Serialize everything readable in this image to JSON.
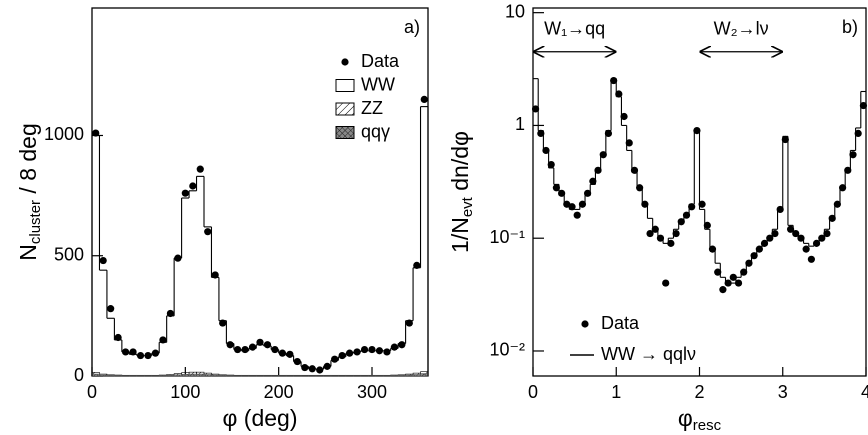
{
  "chart_data": [
    {
      "type": "histogram",
      "panel_label": "a)",
      "xlabel": {
        "main": "φ (deg)"
      },
      "ylabel": {
        "main": "N",
        "sub": "cluster",
        "rest": " / 8 deg"
      },
      "bins": [
        0,
        8,
        16,
        24,
        32,
        40,
        48,
        56,
        64,
        72,
        80,
        88,
        96,
        104,
        112,
        120,
        128,
        136,
        144,
        152,
        160,
        168,
        176,
        184,
        192,
        200,
        208,
        216,
        224,
        232,
        240,
        248,
        256,
        264,
        272,
        280,
        288,
        296,
        304,
        312,
        320,
        328,
        336,
        344,
        352,
        360
      ],
      "series": [
        {
          "name": "ZZ",
          "style": "hatch",
          "color": "#000000",
          "values": [
            15,
            8,
            5,
            4,
            3,
            3,
            3,
            3,
            3,
            4,
            6,
            10,
            14,
            16,
            16,
            12,
            8,
            5,
            4,
            3,
            3,
            3,
            3,
            3,
            3,
            3,
            3,
            3,
            3,
            3,
            3,
            3,
            3,
            3,
            3,
            3,
            3,
            3,
            3,
            3,
            4,
            5,
            8,
            12,
            18
          ]
        },
        {
          "name": "qqγ",
          "style": "crosshatch",
          "color": "#555555",
          "values": [
            8,
            4,
            3,
            2,
            2,
            2,
            2,
            2,
            2,
            2,
            3,
            5,
            7,
            8,
            8,
            6,
            4,
            3,
            2,
            2,
            2,
            2,
            2,
            2,
            2,
            2,
            2,
            2,
            2,
            2,
            2,
            2,
            2,
            2,
            2,
            2,
            2,
            2,
            2,
            2,
            2,
            3,
            4,
            6,
            10
          ]
        },
        {
          "name": "WW",
          "style": "step",
          "color": "#000000",
          "values": [
            1000,
            440,
            240,
            150,
            100,
            90,
            85,
            85,
            95,
            140,
            250,
            490,
            740,
            770,
            830,
            620,
            410,
            230,
            135,
            110,
            105,
            115,
            130,
            125,
            110,
            95,
            85,
            60,
            40,
            30,
            28,
            40,
            65,
            80,
            95,
            100,
            105,
            105,
            105,
            105,
            115,
            135,
            230,
            450,
            1120
          ]
        },
        {
          "name": "Data",
          "style": "points",
          "color": "#000000",
          "values": [
            1010,
            480,
            280,
            160,
            100,
            100,
            85,
            85,
            95,
            150,
            260,
            490,
            760,
            790,
            860,
            600,
            420,
            220,
            130,
            110,
            110,
            120,
            140,
            130,
            110,
            95,
            90,
            60,
            35,
            30,
            25,
            40,
            70,
            85,
            95,
            100,
            110,
            110,
            105,
            100,
            120,
            130,
            220,
            460,
            1150
          ]
        }
      ],
      "xlim": [
        0,
        360
      ],
      "xticks": [
        0,
        100,
        200,
        300
      ],
      "ylim": [
        0,
        1530
      ],
      "yticks": [
        0,
        500,
        1000
      ]
    },
    {
      "type": "line",
      "panel_label": "b)",
      "log_y": true,
      "xlabel": {
        "main": "φ",
        "sub": "resc"
      },
      "ylabel": {
        "main": "1/N",
        "sub": "evt",
        "rest": " dn/dφ"
      },
      "x": [
        0.031,
        0.094,
        0.156,
        0.219,
        0.281,
        0.344,
        0.406,
        0.469,
        0.531,
        0.594,
        0.656,
        0.719,
        0.781,
        0.844,
        0.906,
        0.969,
        1.031,
        1.094,
        1.156,
        1.219,
        1.281,
        1.344,
        1.406,
        1.469,
        1.531,
        1.594,
        1.656,
        1.719,
        1.781,
        1.844,
        1.906,
        1.969,
        2.031,
        2.094,
        2.156,
        2.219,
        2.281,
        2.344,
        2.406,
        2.469,
        2.531,
        2.594,
        2.656,
        2.719,
        2.781,
        2.844,
        2.906,
        2.969,
        3.031,
        3.094,
        3.156,
        3.219,
        3.281,
        3.344,
        3.406,
        3.469,
        3.531,
        3.594,
        3.656,
        3.719,
        3.781,
        3.844,
        3.906,
        3.969
      ],
      "series": [
        {
          "name": "WW → qqlν",
          "style": "step",
          "color": "#000000",
          "values": [
            2.6,
            0.9,
            0.6,
            0.42,
            0.3,
            0.24,
            0.2,
            0.18,
            0.18,
            0.2,
            0.24,
            0.3,
            0.4,
            0.55,
            0.9,
            2.6,
            1.8,
            1.0,
            0.6,
            0.4,
            0.28,
            0.2,
            0.15,
            0.12,
            0.1,
            0.09,
            0.1,
            0.12,
            0.14,
            0.16,
            0.2,
            0.9,
            0.18,
            0.12,
            0.08,
            0.06,
            0.045,
            0.04,
            0.04,
            0.045,
            0.05,
            0.06,
            0.07,
            0.08,
            0.09,
            0.1,
            0.12,
            0.18,
            0.8,
            0.13,
            0.11,
            0.1,
            0.09,
            0.085,
            0.09,
            0.1,
            0.12,
            0.15,
            0.2,
            0.28,
            0.4,
            0.6,
            0.95,
            2.0
          ]
        },
        {
          "name": "Data",
          "style": "points",
          "color": "#000000",
          "values": [
            1.4,
            0.85,
            0.6,
            0.45,
            0.28,
            0.25,
            0.2,
            0.19,
            0.16,
            0.2,
            0.25,
            0.32,
            0.4,
            0.55,
            0.85,
            2.5,
            1.9,
            1.2,
            0.7,
            0.4,
            0.28,
            0.2,
            0.11,
            0.12,
            0.1,
            0.04,
            0.09,
            0.11,
            0.14,
            0.16,
            0.19,
            0.9,
            0.2,
            0.13,
            0.08,
            0.05,
            0.035,
            0.04,
            0.045,
            0.04,
            0.05,
            0.06,
            0.07,
            0.08,
            0.09,
            0.1,
            0.11,
            0.18,
            0.75,
            0.12,
            0.11,
            0.1,
            0.08,
            0.065,
            0.09,
            0.1,
            0.11,
            0.15,
            0.2,
            0.28,
            0.4,
            0.55,
            0.85,
            1.5
          ]
        }
      ],
      "annotations": [
        {
          "text": "W₁→qq",
          "x": [
            0,
            1
          ],
          "y": 4.5
        },
        {
          "text": "W₂→lν",
          "x": [
            2,
            3
          ],
          "y": 4.5
        }
      ],
      "xlim": [
        0,
        4
      ],
      "xticks": [
        0,
        1,
        2,
        3,
        4
      ],
      "ylim": [
        0.006,
        11
      ],
      "yticks": [
        {
          "value": 0.01,
          "label": "10⁻²"
        },
        {
          "value": 0.1,
          "label": "10⁻¹"
        },
        1,
        10
      ]
    }
  ]
}
